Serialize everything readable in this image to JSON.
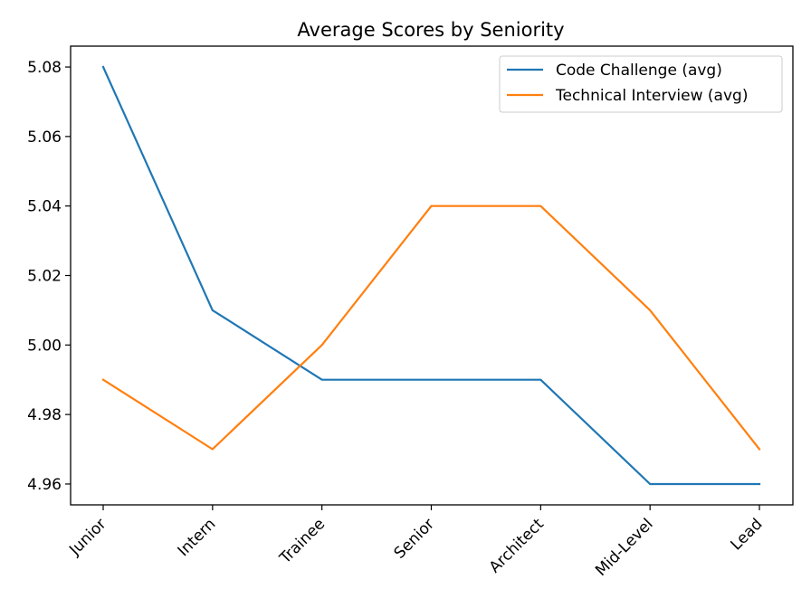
{
  "chart_data": {
    "type": "line",
    "title": "Average Scores by Seniority",
    "xlabel": "",
    "ylabel": "",
    "categories": [
      "Junior",
      "Intern",
      "Trainee",
      "Senior",
      "Architect",
      "Mid-Level",
      "Lead"
    ],
    "series": [
      {
        "name": "Code Challenge (avg)",
        "color": "#1f77b4",
        "values": [
          5.08,
          5.01,
          4.99,
          4.99,
          4.99,
          4.96,
          4.96
        ]
      },
      {
        "name": "Technical Interview (avg)",
        "color": "#ff7f0e",
        "values": [
          4.99,
          4.97,
          5.0,
          5.04,
          5.04,
          5.01,
          4.97
        ]
      }
    ],
    "ylim": [
      4.954,
      5.086
    ],
    "yticks": [
      "4.96",
      "4.98",
      "5.00",
      "5.02",
      "5.04",
      "5.06",
      "5.08"
    ],
    "grid": false,
    "legend_position": "top-right"
  }
}
